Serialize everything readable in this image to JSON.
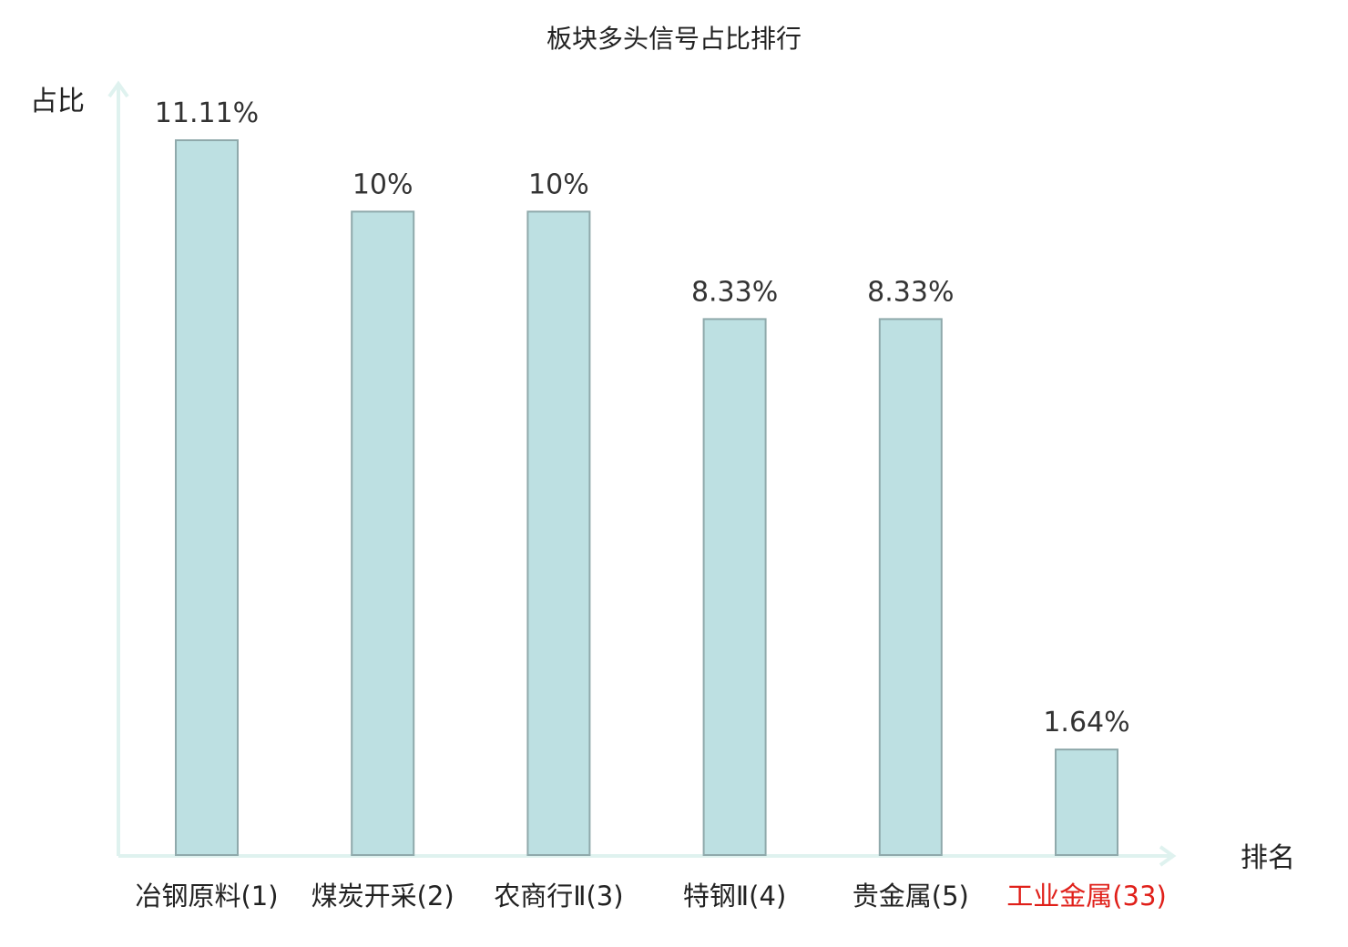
{
  "chart_data": {
    "type": "bar",
    "title": "板块多头信号占比排行",
    "xlabel": "排名",
    "ylabel": "占比",
    "categories": [
      "冶钢原料(1)",
      "煤炭开采(2)",
      "农商行Ⅱ(3)",
      "特钢Ⅱ(4)",
      "贵金属(5)",
      "工业金属(33)"
    ],
    "values": [
      11.11,
      10,
      10,
      8.33,
      8.33,
      1.64
    ],
    "value_labels": [
      "11.11%",
      "10%",
      "10%",
      "8.33%",
      "8.33%",
      "1.64%"
    ],
    "ylim": [
      0,
      11.11
    ],
    "grid": false,
    "legend": "none",
    "highlight_category_index": 5
  },
  "colors": {
    "bar_fill": "#bde0e2",
    "bar_stroke": "#8fa9ab",
    "axis": "#dff2ef",
    "text": "#222222",
    "value_text": "#333333",
    "highlight_text": "#e0201a"
  }
}
